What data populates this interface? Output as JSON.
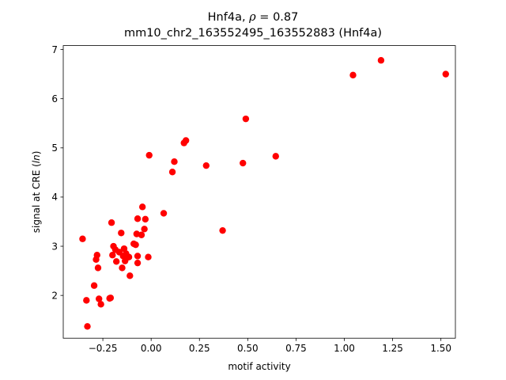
{
  "chart_data": {
    "type": "scatter",
    "title": "Hnf4a, ρ = 0.87",
    "title_prefix": "Hnf4a, ",
    "title_symbol": "ρ",
    "title_suffix": " = 0.87",
    "subtitle": "mm10_chr2_163552495_163552883 (Hnf4a)",
    "xlabel": "motif activity",
    "ylabel_prefix": "signal at CRE (",
    "ylabel_italic": "ln",
    "ylabel_suffix": ")",
    "xlim": [
      -0.455,
      1.575
    ],
    "ylim": [
      1.13,
      7.08
    ],
    "xticks": [
      -0.25,
      0.0,
      0.25,
      0.5,
      0.75,
      1.0,
      1.25,
      1.5
    ],
    "xtick_labels": [
      "−0.25",
      "0.00",
      "0.25",
      "0.50",
      "0.75",
      "1.00",
      "1.25",
      "1.50"
    ],
    "yticks": [
      2,
      3,
      4,
      5,
      6,
      7
    ],
    "ytick_labels": [
      "2",
      "3",
      "4",
      "5",
      "6",
      "7"
    ],
    "grid": false,
    "marker_color": "#ff0000",
    "points": [
      {
        "x": -0.355,
        "y": 3.15
      },
      {
        "x": -0.335,
        "y": 1.9
      },
      {
        "x": -0.33,
        "y": 1.37
      },
      {
        "x": -0.295,
        "y": 2.2
      },
      {
        "x": -0.285,
        "y": 2.73
      },
      {
        "x": -0.28,
        "y": 2.82
      },
      {
        "x": -0.275,
        "y": 2.56
      },
      {
        "x": -0.27,
        "y": 1.93
      },
      {
        "x": -0.26,
        "y": 1.82
      },
      {
        "x": -0.215,
        "y": 1.94
      },
      {
        "x": -0.21,
        "y": 1.95
      },
      {
        "x": -0.205,
        "y": 3.48
      },
      {
        "x": -0.2,
        "y": 2.82
      },
      {
        "x": -0.195,
        "y": 3.0
      },
      {
        "x": -0.185,
        "y": 2.93
      },
      {
        "x": -0.18,
        "y": 2.69
      },
      {
        "x": -0.165,
        "y": 2.88
      },
      {
        "x": -0.155,
        "y": 3.27
      },
      {
        "x": -0.15,
        "y": 2.56
      },
      {
        "x": -0.145,
        "y": 2.8
      },
      {
        "x": -0.14,
        "y": 2.95
      },
      {
        "x": -0.135,
        "y": 2.7
      },
      {
        "x": -0.13,
        "y": 2.85
      },
      {
        "x": -0.125,
        "y": 2.77
      },
      {
        "x": -0.115,
        "y": 2.78
      },
      {
        "x": -0.11,
        "y": 2.4
      },
      {
        "x": -0.09,
        "y": 3.05
      },
      {
        "x": -0.08,
        "y": 3.03
      },
      {
        "x": -0.075,
        "y": 3.25
      },
      {
        "x": -0.07,
        "y": 3.56
      },
      {
        "x": -0.07,
        "y": 2.8
      },
      {
        "x": -0.07,
        "y": 2.66
      },
      {
        "x": -0.05,
        "y": 3.23
      },
      {
        "x": -0.045,
        "y": 3.8
      },
      {
        "x": -0.035,
        "y": 3.35
      },
      {
        "x": -0.03,
        "y": 3.55
      },
      {
        "x": -0.015,
        "y": 2.78
      },
      {
        "x": -0.01,
        "y": 4.85
      },
      {
        "x": 0.065,
        "y": 3.67
      },
      {
        "x": 0.11,
        "y": 4.51
      },
      {
        "x": 0.12,
        "y": 4.72
      },
      {
        "x": 0.17,
        "y": 5.1
      },
      {
        "x": 0.18,
        "y": 5.15
      },
      {
        "x": 0.285,
        "y": 4.64
      },
      {
        "x": 0.37,
        "y": 3.32
      },
      {
        "x": 0.475,
        "y": 4.69
      },
      {
        "x": 0.49,
        "y": 5.59
      },
      {
        "x": 0.645,
        "y": 4.83
      },
      {
        "x": 1.045,
        "y": 6.48
      },
      {
        "x": 1.19,
        "y": 6.78
      },
      {
        "x": 1.525,
        "y": 6.5
      }
    ]
  }
}
